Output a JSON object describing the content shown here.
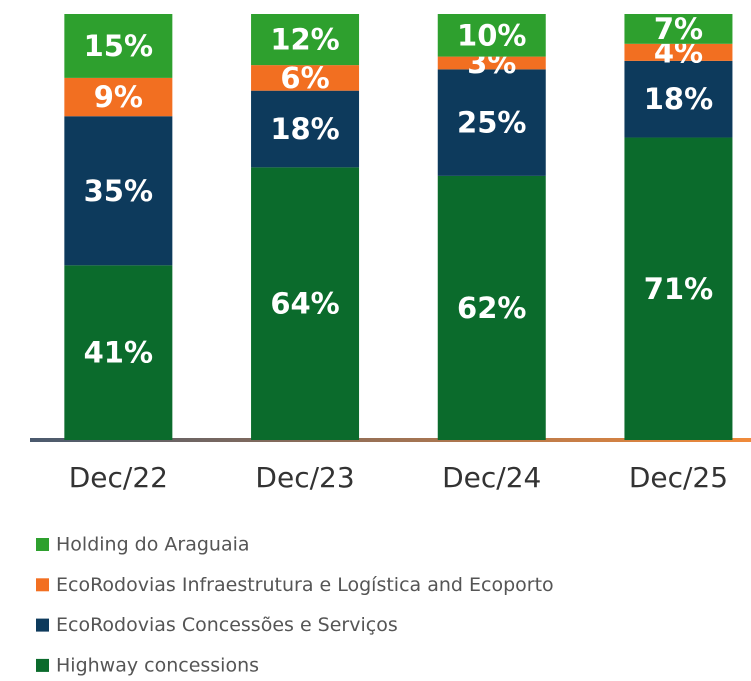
{
  "chart_data": {
    "type": "stacked_bar",
    "categories": [
      "Dec/22",
      "Dec/23",
      "Dec/24",
      "Dec/25"
    ],
    "series": [
      {
        "name": "Highway concessions",
        "color": "#0b6b2c",
        "values": [
          41,
          64,
          62,
          71
        ],
        "value_labels": [
          "41%",
          "64%",
          "62%",
          "71%"
        ]
      },
      {
        "name": "EcoRodovias Concessões e Serviços",
        "color": "#0d3a5c",
        "values": [
          35,
          18,
          25,
          18
        ],
        "value_labels": [
          "35%",
          "18%",
          "25%",
          "18%"
        ]
      },
      {
        "name": "EcoRodovias Infraestrutura e Logística and Ecoporto",
        "color": "#f26f21",
        "values": [
          9,
          6,
          3,
          4
        ],
        "value_labels": [
          "9%",
          "6%",
          "3%",
          "4%"
        ]
      },
      {
        "name": "Holding do Araguaia",
        "color": "#2ea02e",
        "values": [
          15,
          12,
          10,
          7
        ],
        "value_labels": [
          "15%",
          "12%",
          "10%",
          "7%"
        ]
      }
    ]
  }
}
